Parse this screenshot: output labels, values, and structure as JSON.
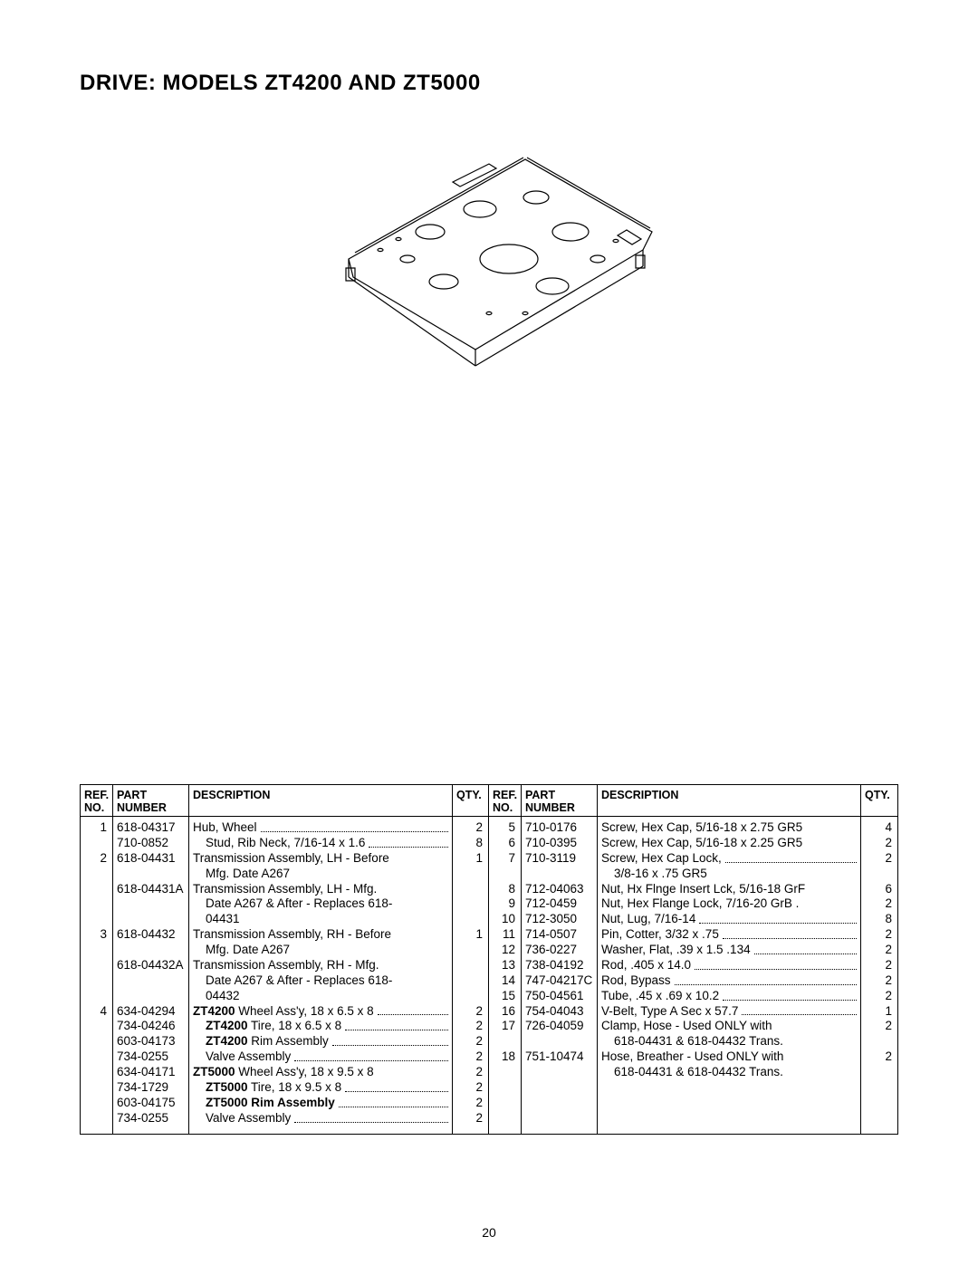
{
  "title": "DRIVE: MODELS ZT4200 AND ZT5000",
  "page_number": "20",
  "headers": {
    "refno": "REF.\nNO.",
    "part": "PART\nNUMBER",
    "desc": "DESCRIPTION",
    "qty": "QTY."
  },
  "left": {
    "ref": [
      "1",
      "",
      "2",
      "",
      "",
      "",
      "",
      "3",
      "",
      "",
      "",
      "",
      "4",
      "",
      "",
      "",
      "",
      "",
      "",
      ""
    ],
    "part": [
      "618-04317",
      "710-0852",
      "618-04431",
      "",
      "618-04431A",
      "",
      "",
      "618-04432",
      "",
      "618-04432A",
      "",
      "",
      "634-04294",
      "734-04246",
      "603-04173",
      "734-0255",
      "634-04171",
      "734-1729",
      "603-04175",
      "734-0255"
    ],
    "qty": [
      "2",
      "8",
      "1",
      "",
      "",
      "",
      "",
      "1",
      "",
      "",
      "",
      "",
      "2",
      "2",
      "2",
      "2",
      "2",
      "2",
      "2",
      "2"
    ],
    "desc": [
      {
        "t": "Hub, Wheel",
        "lead": true
      },
      {
        "t": "Stud, Rib Neck, 7/16-14 x 1.6",
        "lead": true,
        "indent": true
      },
      {
        "t": "Transmission Assembly, LH - Before",
        "lead": false
      },
      {
        "t": "Mfg. Date A267",
        "lead": false,
        "indent": true
      },
      {
        "t": "Transmission Assembly, LH -  Mfg.",
        "lead": false
      },
      {
        "t": "Date A267 & After - Replaces 618-",
        "lead": false,
        "indent": true
      },
      {
        "t": "04431",
        "lead": false,
        "indent": true
      },
      {
        "t": "Transmission Assembly, RH - Before",
        "lead": false
      },
      {
        "t": "Mfg. Date A267",
        "lead": false,
        "indent": true
      },
      {
        "t": "Transmission Assembly, RH -  Mfg.",
        "lead": false
      },
      {
        "t": "Date A267 & After - Replaces 618-",
        "lead": false,
        "indent": true
      },
      {
        "t": "04432",
        "lead": false,
        "indent": true
      },
      {
        "t": "<b>ZT4200</b> Wheel Ass'y, 18 x 6.5 x 8",
        "lead": true
      },
      {
        "t": "<b>ZT4200</b> Tire, 18 x 6.5 x 8",
        "lead": true,
        "indent": true
      },
      {
        "t": "<b>ZT4200</b> Rim Assembly",
        "lead": true,
        "indent": true
      },
      {
        "t": "Valve Assembly",
        "lead": true,
        "indent": true
      },
      {
        "t": "<b>ZT5000</b> Wheel Ass'y, 18 x 9.5 x 8",
        "lead": false
      },
      {
        "t": "<b>ZT5000</b> Tire, 18 x 9.5 x 8",
        "lead": true,
        "indent": true
      },
      {
        "t": "<b>ZT5000 Rim Assembly</b>",
        "lead": true,
        "indent": true
      },
      {
        "t": "Valve Assembly",
        "lead": true,
        "indent": true
      }
    ]
  },
  "right": {
    "ref": [
      "5",
      "6",
      "7",
      "",
      "8",
      "9",
      "10",
      "11",
      "12",
      "13",
      "14",
      "15",
      "16",
      "17",
      "",
      "18",
      ""
    ],
    "part": [
      "710-0176",
      "710-0395",
      "710-3119",
      "",
      "712-04063",
      "712-0459",
      "712-3050",
      "714-0507",
      "736-0227",
      "738-04192",
      "747-04217C",
      "750-04561",
      "754-04043",
      "726-04059",
      "",
      "751-10474",
      ""
    ],
    "qty": [
      "4",
      "2",
      "2",
      "",
      "6",
      "2",
      "8",
      "2",
      "2",
      "2",
      "2",
      "2",
      "1",
      "2",
      "",
      "2",
      ""
    ],
    "desc": [
      {
        "t": "Screw, Hex Cap, 5/16-18 x 2.75 GR5",
        "lead": false
      },
      {
        "t": "Screw, Hex Cap, 5/16-18 x 2.25 GR5",
        "lead": false
      },
      {
        "t": "Screw, Hex Cap Lock,",
        "lead": true
      },
      {
        "t": "3/8-16 x .75 GR5",
        "lead": false,
        "indent": true
      },
      {
        "t": "Nut, Hx Flnge Insert Lck, 5/16-18 GrF",
        "lead": false
      },
      {
        "t": "Nut, Hex Flange Lock, 7/16-20 GrB .",
        "lead": false
      },
      {
        "t": "Nut, Lug, 7/16-14",
        "lead": true
      },
      {
        "t": "Pin, Cotter, 3/32 x .75",
        "lead": true
      },
      {
        "t": "Washer, Flat, .39 x 1.5 .134",
        "lead": true
      },
      {
        "t": "Rod, .405 x 14.0",
        "lead": true
      },
      {
        "t": "Rod, Bypass",
        "lead": true
      },
      {
        "t": "Tube, .45 x .69 x 10.2",
        "lead": true
      },
      {
        "t": "V-Belt, Type A Sec x 57.7",
        "lead": true
      },
      {
        "t": "Clamp, Hose - Used ONLY with",
        "lead": false
      },
      {
        "t": "618-04431 &  618-04432 Trans.",
        "lead": false,
        "indent": true
      },
      {
        "t": "Hose, Breather - Used ONLY with",
        "lead": false
      },
      {
        "t": "618-04431 &  618-04432 Trans.",
        "lead": false,
        "indent": true
      }
    ]
  }
}
